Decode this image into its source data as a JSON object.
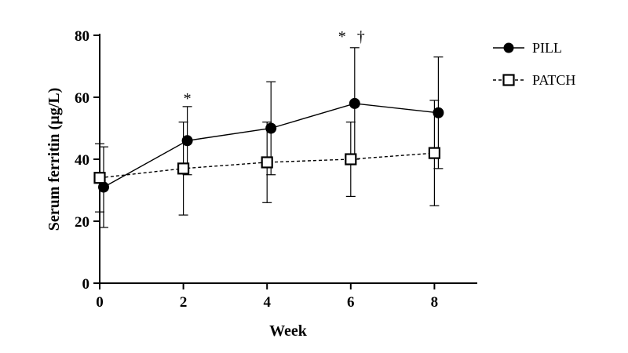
{
  "chart_data": {
    "type": "line",
    "xlabel": "Week",
    "ylabel": "Serum ferritin (µg/L)",
    "xlim": [
      0,
      9
    ],
    "ylim": [
      0,
      80
    ],
    "xticks": [
      0,
      2,
      4,
      6,
      8
    ],
    "yticks": [
      0,
      20,
      40,
      60,
      80
    ],
    "grid": false,
    "legend_position": "top-right",
    "series": [
      {
        "name": "PILL",
        "marker": "filled-circle",
        "line": "solid",
        "color": "#000000",
        "x": [
          0,
          2,
          4,
          6,
          8
        ],
        "y": [
          31,
          46,
          50,
          58,
          55
        ],
        "err_low": [
          18,
          35,
          35,
          40,
          37
        ],
        "err_high": [
          44,
          57,
          65,
          76,
          73
        ]
      },
      {
        "name": "PATCH",
        "marker": "open-square",
        "line": "dashed",
        "color": "#000000",
        "x": [
          0,
          2,
          4,
          6,
          8
        ],
        "y": [
          34,
          37,
          39,
          40,
          42
        ],
        "err_low": [
          23,
          22,
          26,
          28,
          25
        ],
        "err_high": [
          45,
          52,
          52,
          52,
          59
        ]
      }
    ],
    "annotations": [
      {
        "text": "*",
        "x": 2,
        "y": 61
      },
      {
        "text": "*",
        "x": 6,
        "y": 81
      },
      {
        "text": "†",
        "x": 6,
        "y": 81
      }
    ]
  }
}
